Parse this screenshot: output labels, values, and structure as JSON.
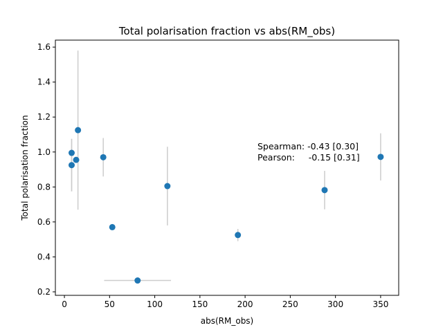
{
  "chart_data": {
    "type": "scatter",
    "title": "Total polarisation fraction vs abs(RM_obs)",
    "xlabel": "abs(RM_obs)",
    "ylabel": "Total polarisation fraction",
    "xlim": [
      -10,
      370
    ],
    "ylim": [
      0.18,
      1.64
    ],
    "xticks": [
      0,
      50,
      100,
      150,
      200,
      250,
      300,
      350
    ],
    "yticks": [
      0.2,
      0.4,
      0.6,
      0.8,
      1.0,
      1.2,
      1.4,
      1.6
    ],
    "xtick_labels": [
      "0",
      "50",
      "100",
      "150",
      "200",
      "250",
      "300",
      "350"
    ],
    "ytick_labels": [
      "0.2",
      "0.4",
      "0.6",
      "0.8",
      "1.0",
      "1.2",
      "1.4",
      "1.6"
    ],
    "grid": false,
    "point_color": "#1f77b4",
    "errorbar_color": "#cccccc",
    "points": [
      {
        "x": 8,
        "y": 0.995,
        "yerr": [
          0.22,
          0.08
        ]
      },
      {
        "x": 8,
        "y": 0.925,
        "yerr": [
          0.15,
          0.15
        ]
      },
      {
        "x": 13,
        "y": 0.955,
        "yerr": [
          0.0,
          0.0
        ]
      },
      {
        "x": 15,
        "y": 1.125,
        "yerr": [
          0.455,
          0.455
        ]
      },
      {
        "x": 43,
        "y": 0.97,
        "yerr": [
          0.11,
          0.11
        ]
      },
      {
        "x": 53,
        "y": 0.57,
        "yerr": [
          0.0,
          0.0
        ]
      },
      {
        "x": 81,
        "y": 0.265,
        "xerr": [
          37,
          37
        ]
      },
      {
        "x": 114,
        "y": 0.805,
        "yerr": [
          0.225,
          0.225
        ]
      },
      {
        "x": 192,
        "y": 0.525,
        "yerr": [
          0.035,
          0.035
        ]
      },
      {
        "x": 288,
        "y": 0.782,
        "yerr": [
          0.11,
          0.11
        ]
      },
      {
        "x": 350,
        "y": 0.972,
        "yerr": [
          0.135,
          0.135
        ]
      }
    ],
    "annotation": {
      "spearman": "Spearman: -0.43 [0.30]",
      "pearson": "Pearson:     -0.15 [0.31]"
    }
  }
}
